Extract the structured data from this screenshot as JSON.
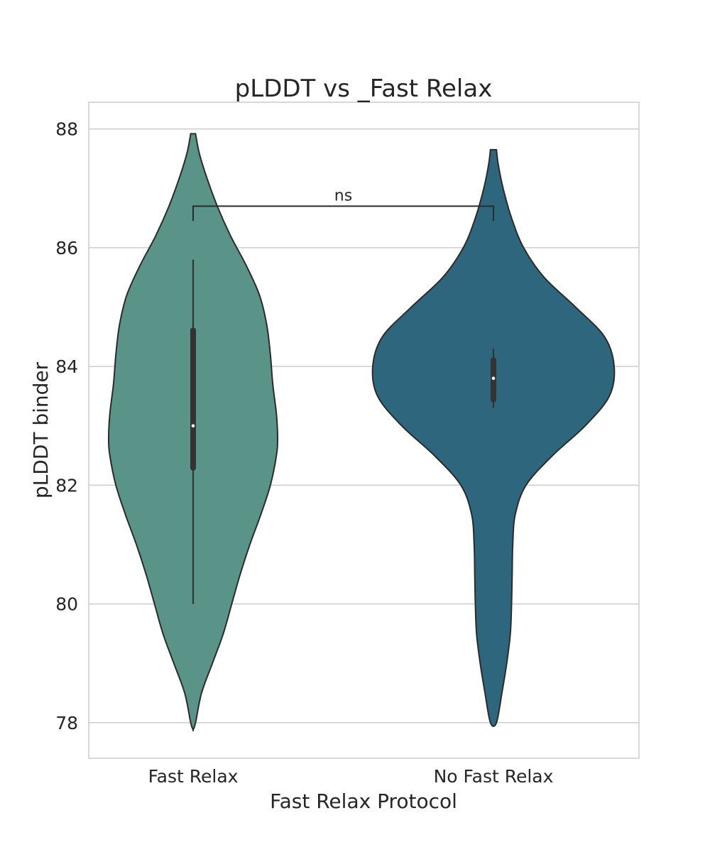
{
  "chart_data": {
    "type": "violin",
    "title": "pLDDT vs _Fast Relax",
    "xlabel": "Fast Relax Protocol",
    "ylabel": "pLDDT binder",
    "ylim": [
      77.4,
      88.45
    ],
    "yticks": [
      78,
      80,
      82,
      84,
      86,
      88
    ],
    "grid": true,
    "categories": [
      "Fast Relax",
      "No Fast Relax"
    ],
    "colors": [
      "#5a9488",
      "#2d667d"
    ],
    "series": [
      {
        "category": "Fast Relax",
        "min": 80.0,
        "q1": 82.25,
        "median": 83.0,
        "q3": 84.65,
        "max": 85.8,
        "density_extent": [
          77.88,
          87.92
        ],
        "density_profile": [
          {
            "y": 77.88,
            "w": 0.0
          },
          {
            "y": 78.0,
            "w": 0.02
          },
          {
            "y": 78.5,
            "w": 0.07
          },
          {
            "y": 79.0,
            "w": 0.16
          },
          {
            "y": 79.5,
            "w": 0.25
          },
          {
            "y": 80.0,
            "w": 0.32
          },
          {
            "y": 80.5,
            "w": 0.39
          },
          {
            "y": 81.0,
            "w": 0.47
          },
          {
            "y": 81.5,
            "w": 0.56
          },
          {
            "y": 82.0,
            "w": 0.64
          },
          {
            "y": 82.5,
            "w": 0.69
          },
          {
            "y": 82.8,
            "w": 0.7
          },
          {
            "y": 83.2,
            "w": 0.69
          },
          {
            "y": 83.7,
            "w": 0.66
          },
          {
            "y": 84.2,
            "w": 0.64
          },
          {
            "y": 84.7,
            "w": 0.61
          },
          {
            "y": 85.2,
            "w": 0.55
          },
          {
            "y": 85.7,
            "w": 0.44
          },
          {
            "y": 86.2,
            "w": 0.31
          },
          {
            "y": 86.7,
            "w": 0.2
          },
          {
            "y": 87.2,
            "w": 0.11
          },
          {
            "y": 87.6,
            "w": 0.05
          },
          {
            "y": 87.92,
            "w": 0.02
          }
        ]
      },
      {
        "category": "No Fast Relax",
        "min": 83.3,
        "q1": 83.4,
        "median": 83.8,
        "q3": 84.15,
        "max": 84.3,
        "density_extent": [
          78.0,
          87.65
        ],
        "density_profile": [
          {
            "y": 78.0,
            "w": 0.025
          },
          {
            "y": 78.5,
            "w": 0.07
          },
          {
            "y": 79.0,
            "w": 0.11
          },
          {
            "y": 79.5,
            "w": 0.14
          },
          {
            "y": 80.0,
            "w": 0.15
          },
          {
            "y": 80.5,
            "w": 0.155
          },
          {
            "y": 81.0,
            "w": 0.16
          },
          {
            "y": 81.5,
            "w": 0.18
          },
          {
            "y": 82.0,
            "w": 0.27
          },
          {
            "y": 82.5,
            "w": 0.49
          },
          {
            "y": 83.0,
            "w": 0.76
          },
          {
            "y": 83.5,
            "w": 0.96
          },
          {
            "y": 84.0,
            "w": 1.0
          },
          {
            "y": 84.5,
            "w": 0.92
          },
          {
            "y": 85.0,
            "w": 0.68
          },
          {
            "y": 85.5,
            "w": 0.42
          },
          {
            "y": 86.0,
            "w": 0.25
          },
          {
            "y": 86.5,
            "w": 0.15
          },
          {
            "y": 87.0,
            "w": 0.08
          },
          {
            "y": 87.4,
            "w": 0.04
          },
          {
            "y": 87.65,
            "w": 0.025
          }
        ]
      }
    ],
    "annotations": [
      {
        "label": "ns",
        "from": "Fast Relax",
        "to": "No Fast Relax",
        "y": 86.7,
        "tick_bottom": 86.45
      }
    ]
  }
}
